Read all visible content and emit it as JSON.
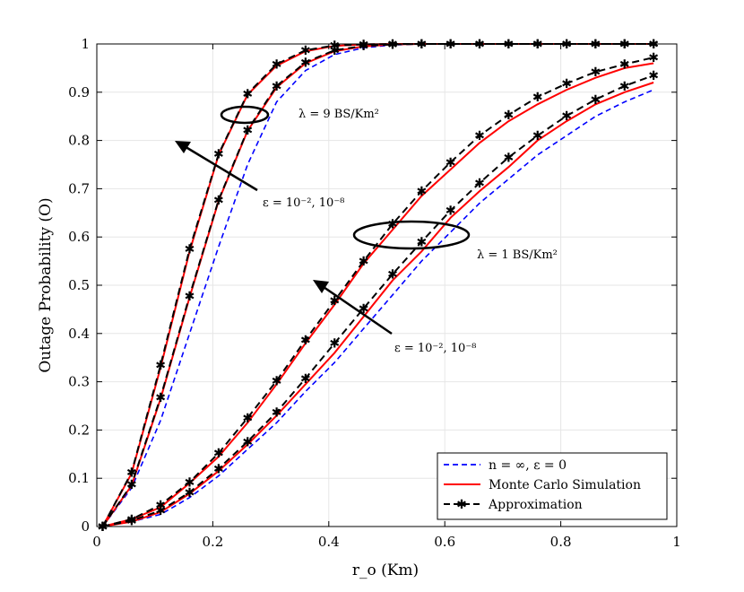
{
  "chart_data": {
    "type": "line",
    "xlabel": "r_o (Km)",
    "ylabel": "Outage Probability (O)",
    "xlim": [
      0,
      1
    ],
    "ylim": [
      0,
      1
    ],
    "xticks": [
      "0",
      "0.2",
      "0.4",
      "0.6",
      "0.8",
      "1"
    ],
    "yticks": [
      "0",
      "0.1",
      "0.2",
      "0.3",
      "0.4",
      "0.5",
      "0.6",
      "0.7",
      "0.8",
      "0.9",
      "1"
    ],
    "grid": true,
    "legend_position": "bottom-right",
    "legend": [
      {
        "label": "n = ∞, ε = 0",
        "color": "#0000ff",
        "style": "dashed"
      },
      {
        "label": "Monte Carlo Simulation",
        "color": "#ff0000",
        "style": "solid"
      },
      {
        "label": "Approximation",
        "color": "#000000",
        "style": "dashed-marker"
      }
    ],
    "annotations": {
      "lambda9": "λ = 9 BS/Km²",
      "lambda1": "λ = 1 BS/Km²",
      "eps_high": "ε = 10⁻², 10⁻⁸",
      "eps_low": "ε = 10⁻², 10⁻⁸"
    },
    "x": [
      0.01,
      0.06,
      0.11,
      0.16,
      0.21,
      0.26,
      0.31,
      0.36,
      0.41,
      0.46,
      0.51,
      0.56,
      0.61,
      0.66,
      0.71,
      0.76,
      0.81,
      0.86,
      0.91,
      0.96
    ],
    "series": [
      {
        "name": "lambda9-ideal",
        "kind": "ideal",
        "values": [
          0.0,
          0.08,
          0.22,
          0.4,
          0.58,
          0.75,
          0.88,
          0.945,
          0.978,
          0.992,
          0.998,
          1,
          1,
          1,
          1,
          1,
          1,
          1,
          1,
          1
        ]
      },
      {
        "name": "lambda9-sim-eps2",
        "kind": "sim",
        "values": [
          0.0,
          0.11,
          0.33,
          0.57,
          0.77,
          0.895,
          0.955,
          0.985,
          0.996,
          0.999,
          1,
          1,
          1,
          1,
          1,
          1,
          1,
          1,
          1,
          1
        ]
      },
      {
        "name": "lambda9-sim-eps8",
        "kind": "sim",
        "values": [
          0.0,
          0.085,
          0.265,
          0.475,
          0.675,
          0.82,
          0.91,
          0.96,
          0.985,
          0.995,
          0.999,
          1,
          1,
          1,
          1,
          1,
          1,
          1,
          1,
          1
        ]
      },
      {
        "name": "lambda9-approx-eps2",
        "kind": "approx",
        "values": [
          0.0,
          0.112,
          0.335,
          0.575,
          0.772,
          0.897,
          0.958,
          0.987,
          0.997,
          0.999,
          1,
          1,
          1,
          1,
          1,
          1,
          1,
          1,
          1,
          1
        ]
      },
      {
        "name": "lambda9-approx-eps8",
        "kind": "approx",
        "values": [
          0.0,
          0.087,
          0.268,
          0.478,
          0.677,
          0.822,
          0.913,
          0.962,
          0.987,
          0.996,
          0.999,
          1,
          1,
          1,
          1,
          1,
          1,
          1,
          1,
          1
        ]
      },
      {
        "name": "lambda1-ideal",
        "kind": "ideal",
        "values": [
          0.0,
          0.01,
          0.025,
          0.06,
          0.105,
          0.16,
          0.215,
          0.28,
          0.34,
          0.41,
          0.48,
          0.55,
          0.61,
          0.67,
          0.72,
          0.77,
          0.81,
          0.85,
          0.88,
          0.905
        ]
      },
      {
        "name": "lambda1-sim-eps2",
        "kind": "sim",
        "values": [
          0.0,
          0.015,
          0.04,
          0.09,
          0.145,
          0.215,
          0.295,
          0.38,
          0.46,
          0.545,
          0.615,
          0.685,
          0.74,
          0.795,
          0.84,
          0.875,
          0.905,
          0.93,
          0.95,
          0.96
        ]
      },
      {
        "name": "lambda1-sim-eps8",
        "kind": "sim",
        "values": [
          0.0,
          0.01,
          0.03,
          0.068,
          0.115,
          0.17,
          0.23,
          0.295,
          0.36,
          0.435,
          0.51,
          0.57,
          0.64,
          0.695,
          0.745,
          0.8,
          0.84,
          0.875,
          0.9,
          0.92
        ]
      },
      {
        "name": "lambda1-approx-eps2",
        "kind": "approx",
        "values": [
          0.0,
          0.015,
          0.045,
          0.092,
          0.152,
          0.225,
          0.302,
          0.387,
          0.468,
          0.55,
          0.627,
          0.695,
          0.755,
          0.81,
          0.853,
          0.89,
          0.918,
          0.942,
          0.958,
          0.972
        ]
      },
      {
        "name": "lambda1-approx-eps8",
        "kind": "approx",
        "values": [
          0.0,
          0.012,
          0.033,
          0.071,
          0.12,
          0.176,
          0.237,
          0.307,
          0.38,
          0.452,
          0.523,
          0.59,
          0.655,
          0.712,
          0.765,
          0.81,
          0.851,
          0.885,
          0.913,
          0.935
        ]
      }
    ]
  }
}
